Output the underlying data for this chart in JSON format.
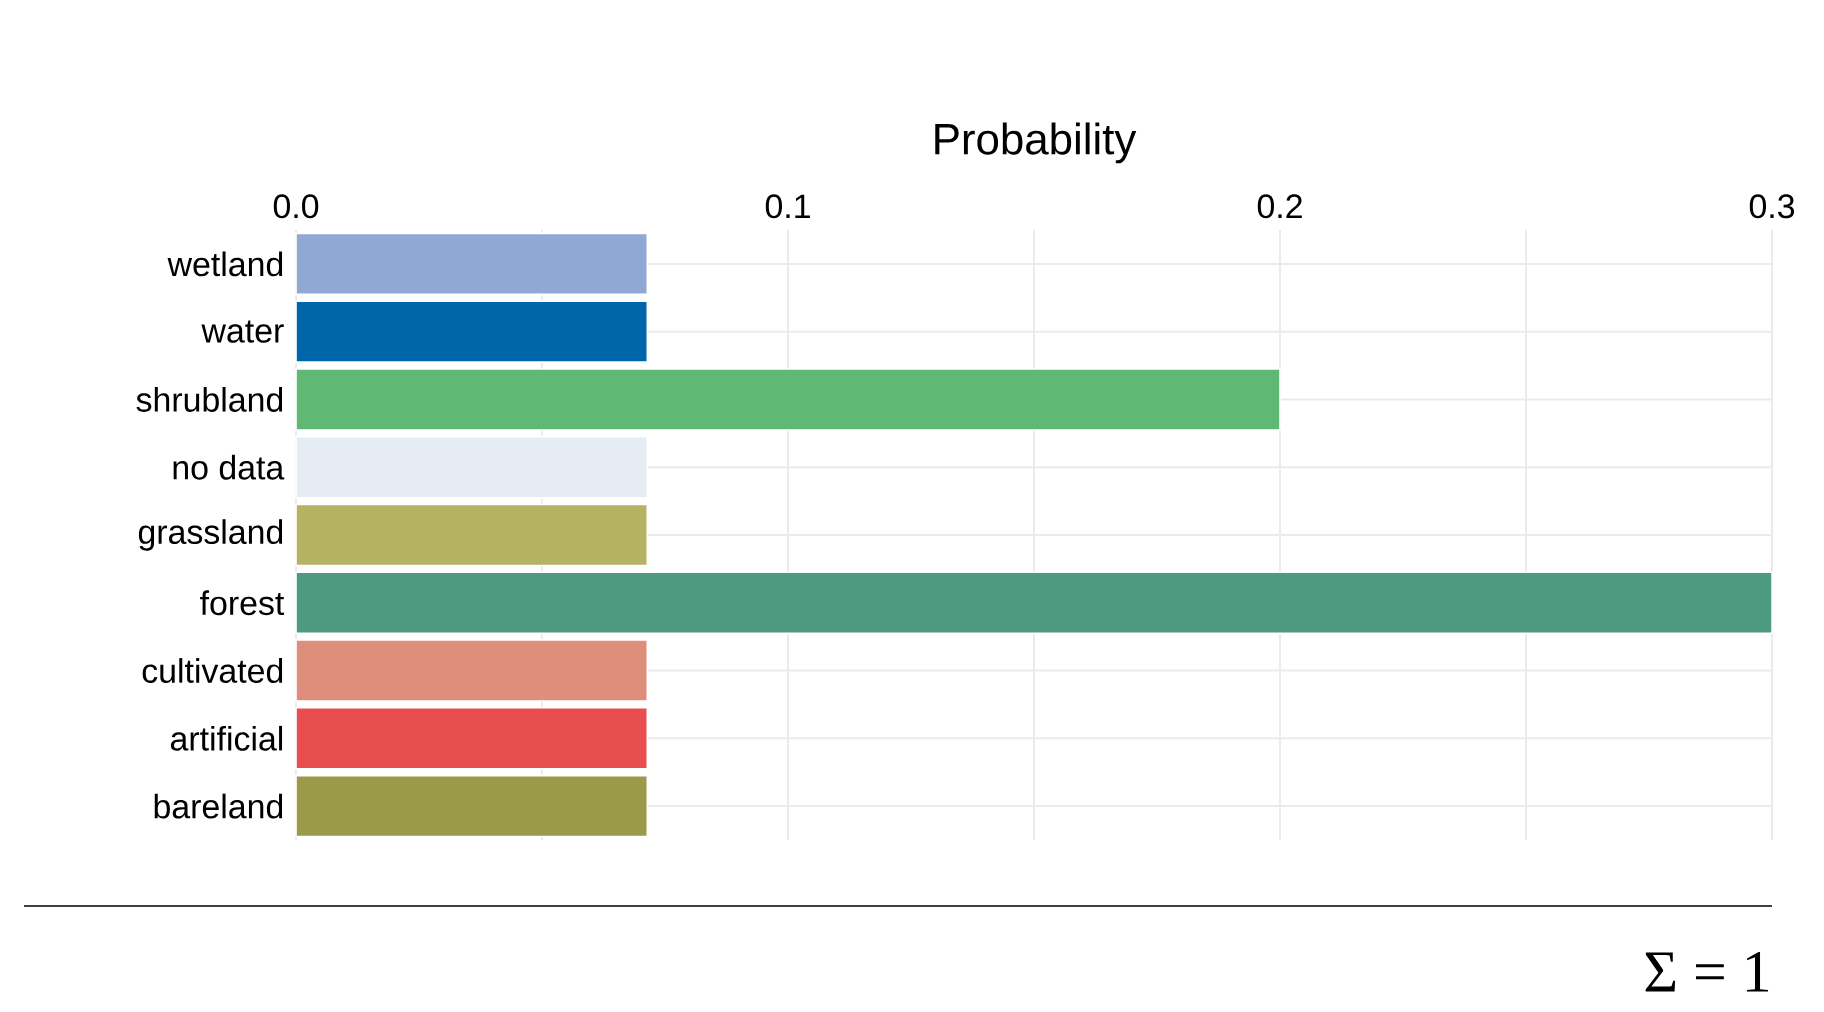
{
  "chart_data": {
    "type": "bar",
    "orientation": "horizontal",
    "xlabel": "Probability",
    "categories": [
      "wetland",
      "water",
      "shrubland",
      "no data",
      "grassland",
      "forest",
      "cultivated",
      "artificial",
      "bareland"
    ],
    "values": [
      0.0714,
      0.0714,
      0.2,
      0.0714,
      0.0714,
      0.3,
      0.0714,
      0.0714,
      0.0714
    ],
    "colors": [
      "#8fa8d4",
      "#0066aa",
      "#5fb874",
      "#e6ecf4",
      "#b5b363",
      "#4e9a80",
      "#e08e7c",
      "#e84e4e",
      "#9a9a4a"
    ],
    "xlim": [
      0,
      0.3
    ],
    "xticks": [
      {
        "value": 0,
        "label": "0.0"
      },
      {
        "value": 0.05,
        "label": null
      },
      {
        "value": 0.1,
        "label": "0.1"
      },
      {
        "value": 0.15,
        "label": null
      },
      {
        "value": 0.2,
        "label": "0.2"
      },
      {
        "value": 0.25,
        "label": null
      },
      {
        "value": 0.3,
        "label": "0.3"
      }
    ],
    "grid": true,
    "annotations": [
      "Σ = 1"
    ]
  }
}
